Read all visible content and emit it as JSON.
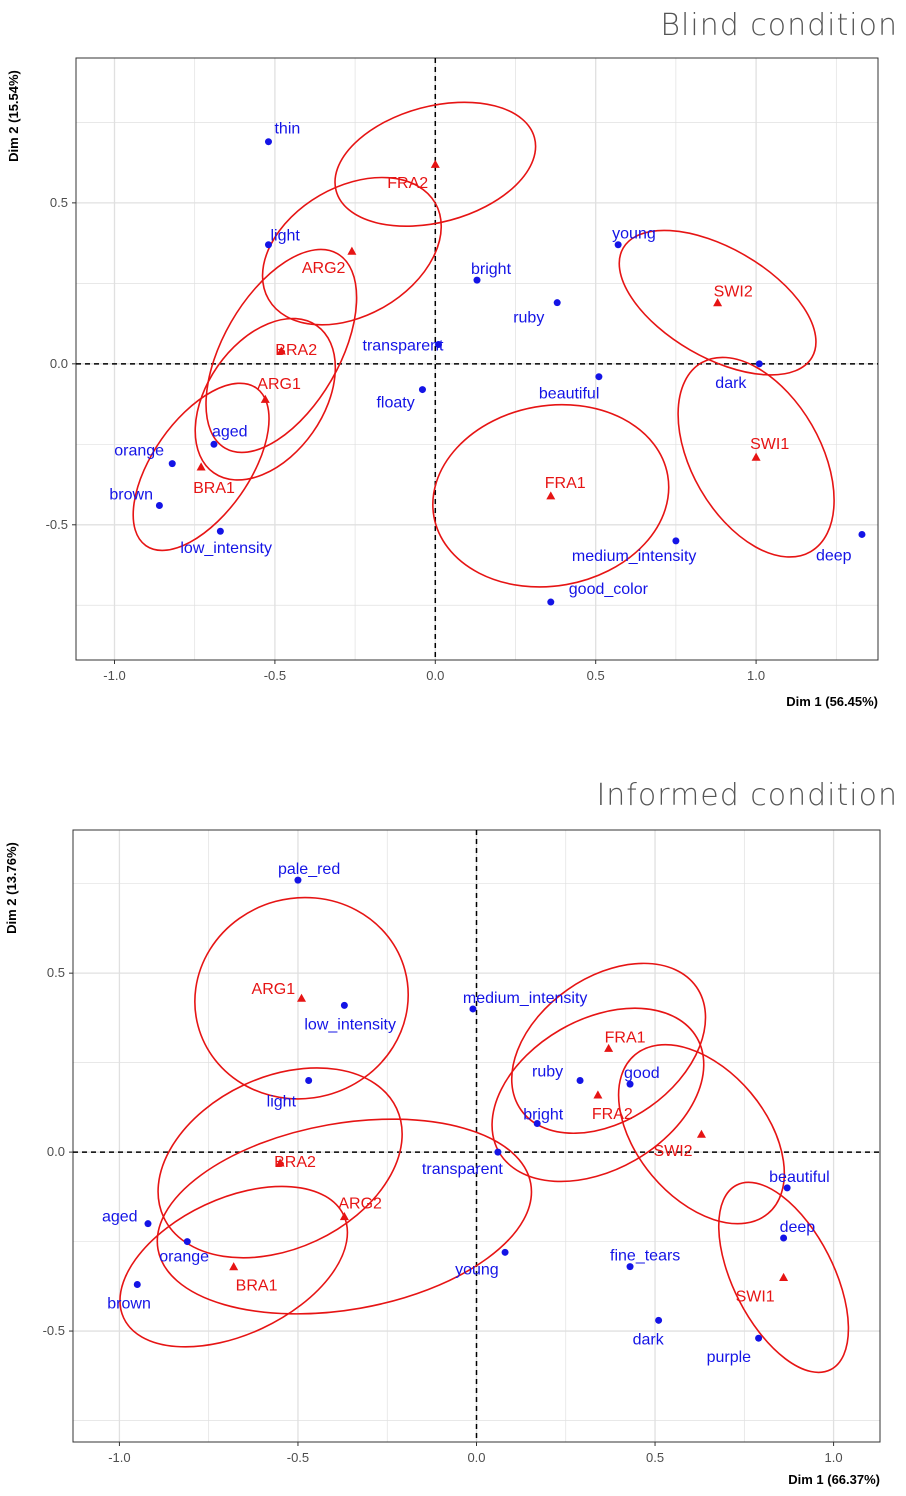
{
  "chart_data": [
    {
      "type": "scatter",
      "title": "Blind condition",
      "xlabel": "Dim 1 (56.45%)",
      "ylabel": "Dim 2 (15.54%)",
      "xlim": [
        -1.12,
        1.38
      ],
      "ylim": [
        -0.92,
        0.95
      ],
      "xticks": [
        -1.0,
        -0.5,
        0.0,
        0.5,
        1.0
      ],
      "yticks": [
        -0.5,
        0.0,
        0.5
      ],
      "xtick_labels": [
        "-1.0",
        "-0.5",
        "0.0",
        "0.5",
        "1.0"
      ],
      "ytick_labels": [
        "-0.5",
        "0.0",
        "0.5"
      ],
      "grid": true,
      "reference_lines": [
        0,
        0
      ],
      "colors": {
        "variables": "#1414e6",
        "products": "#e61414",
        "ellipse": "#e61414"
      },
      "series": [
        {
          "kind": "variables",
          "points": [
            {
              "label": "thin",
              "x": -0.52,
              "y": 0.69
            },
            {
              "label": "light",
              "x": -0.52,
              "y": 0.37
            },
            {
              "label": "bright",
              "x": 0.13,
              "y": 0.26
            },
            {
              "label": "young",
              "x": 0.57,
              "y": 0.37
            },
            {
              "label": "ruby",
              "x": 0.38,
              "y": 0.19
            },
            {
              "label": "transparent",
              "x": 0.01,
              "y": 0.06
            },
            {
              "label": "floaty",
              "x": -0.04,
              "y": -0.08
            },
            {
              "label": "beautiful",
              "x": 0.51,
              "y": -0.04
            },
            {
              "label": "dark",
              "x": 1.01,
              "y": 0.0
            },
            {
              "label": "aged",
              "x": -0.69,
              "y": -0.25
            },
            {
              "label": "orange",
              "x": -0.82,
              "y": -0.31
            },
            {
              "label": "brown",
              "x": -0.86,
              "y": -0.44
            },
            {
              "label": "low_intensity",
              "x": -0.67,
              "y": -0.52
            },
            {
              "label": "medium_intensity",
              "x": 0.75,
              "y": -0.55
            },
            {
              "label": "good_color",
              "x": 0.36,
              "y": -0.74
            },
            {
              "label": "deep",
              "x": 1.33,
              "y": -0.53
            }
          ]
        },
        {
          "kind": "products",
          "points": [
            {
              "label": "FRA2",
              "x": 0.0,
              "y": 0.62,
              "ellipse": {
                "rx": 0.32,
                "ry": 0.18,
                "angle": -15
              }
            },
            {
              "label": "ARG2",
              "x": -0.26,
              "y": 0.35,
              "ellipse": {
                "rx": 0.3,
                "ry": 0.2,
                "angle": -30
              }
            },
            {
              "label": "BRA2",
              "x": -0.48,
              "y": 0.04,
              "ellipse": {
                "rx": 0.35,
                "ry": 0.18,
                "angle": -60
              }
            },
            {
              "label": "ARG1",
              "x": -0.53,
              "y": -0.11,
              "ellipse": {
                "rx": 0.28,
                "ry": 0.18,
                "angle": -55
              }
            },
            {
              "label": "BRA1",
              "x": -0.73,
              "y": -0.32,
              "ellipse": {
                "rx": 0.3,
                "ry": 0.15,
                "angle": -55
              }
            },
            {
              "label": "FRA1",
              "x": 0.36,
              "y": -0.41,
              "ellipse": {
                "rx": 0.37,
                "ry": 0.28,
                "angle": -10
              }
            },
            {
              "label": "SWI2",
              "x": 0.88,
              "y": 0.19,
              "ellipse": {
                "rx": 0.34,
                "ry": 0.17,
                "angle": 30
              }
            },
            {
              "label": "SWI1",
              "x": 1.0,
              "y": -0.29,
              "ellipse": {
                "rx": 0.34,
                "ry": 0.2,
                "angle": 60
              }
            }
          ]
        }
      ]
    },
    {
      "type": "scatter",
      "title": "Informed condition",
      "xlabel": "Dim 1 (66.37%)",
      "ylabel": "Dim 2 (13.76%)",
      "xlim": [
        -1.13,
        1.13
      ],
      "ylim": [
        -0.81,
        0.9
      ],
      "xticks": [
        -1.0,
        -0.5,
        0.0,
        0.5,
        1.0
      ],
      "yticks": [
        -0.5,
        0.0,
        0.5
      ],
      "xtick_labels": [
        "-1.0",
        "-0.5",
        "0.0",
        "0.5",
        "1.0"
      ],
      "ytick_labels": [
        "-0.5",
        "0.0",
        "0.5"
      ],
      "grid": true,
      "reference_lines": [
        0,
        0
      ],
      "colors": {
        "variables": "#1414e6",
        "products": "#e61414",
        "ellipse": "#e61414"
      },
      "series": [
        {
          "kind": "variables",
          "points": [
            {
              "label": "pale_red",
              "x": -0.5,
              "y": 0.76
            },
            {
              "label": "low_intensity",
              "x": -0.37,
              "y": 0.41
            },
            {
              "label": "light",
              "x": -0.47,
              "y": 0.2
            },
            {
              "label": "medium_intensity",
              "x": -0.01,
              "y": 0.4
            },
            {
              "label": "ruby",
              "x": 0.29,
              "y": 0.2
            },
            {
              "label": "good",
              "x": 0.43,
              "y": 0.19
            },
            {
              "label": "bright",
              "x": 0.17,
              "y": 0.08
            },
            {
              "label": "transparent",
              "x": 0.06,
              "y": 0.0
            },
            {
              "label": "beautiful",
              "x": 0.87,
              "y": -0.1
            },
            {
              "label": "deep",
              "x": 0.86,
              "y": -0.24
            },
            {
              "label": "fine_tears",
              "x": 0.43,
              "y": -0.32
            },
            {
              "label": "young",
              "x": 0.08,
              "y": -0.28
            },
            {
              "label": "aged",
              "x": -0.92,
              "y": -0.2
            },
            {
              "label": "orange",
              "x": -0.81,
              "y": -0.25
            },
            {
              "label": "brown",
              "x": -0.95,
              "y": -0.37
            },
            {
              "label": "dark",
              "x": 0.51,
              "y": -0.47
            },
            {
              "label": "purple",
              "x": 0.79,
              "y": -0.52
            }
          ]
        },
        {
          "kind": "products",
          "points": [
            {
              "label": "ARG1",
              "x": -0.49,
              "y": 0.43,
              "ellipse": {
                "rx": 0.3,
                "ry": 0.28,
                "angle": -15
              }
            },
            {
              "label": "BRA2",
              "x": -0.55,
              "y": -0.03,
              "ellipse": {
                "rx": 0.36,
                "ry": 0.24,
                "angle": -25
              }
            },
            {
              "label": "ARG2",
              "x": -0.37,
              "y": -0.18,
              "ellipse": {
                "rx": 0.53,
                "ry": 0.26,
                "angle": -10
              }
            },
            {
              "label": "BRA1",
              "x": -0.68,
              "y": -0.32,
              "ellipse": {
                "rx": 0.34,
                "ry": 0.19,
                "angle": -25
              }
            },
            {
              "label": "FRA1",
              "x": 0.37,
              "y": 0.29,
              "ellipse": {
                "rx": 0.3,
                "ry": 0.2,
                "angle": -35
              }
            },
            {
              "label": "FRA2",
              "x": 0.34,
              "y": 0.16,
              "ellipse": {
                "rx": 0.32,
                "ry": 0.21,
                "angle": -30
              }
            },
            {
              "label": "SWI2",
              "x": 0.63,
              "y": 0.05,
              "ellipse": {
                "rx": 0.29,
                "ry": 0.18,
                "angle": 50
              }
            },
            {
              "label": "SWI1",
              "x": 0.86,
              "y": -0.35,
              "ellipse": {
                "rx": 0.29,
                "ry": 0.14,
                "angle": 63
              }
            }
          ]
        }
      ]
    }
  ]
}
